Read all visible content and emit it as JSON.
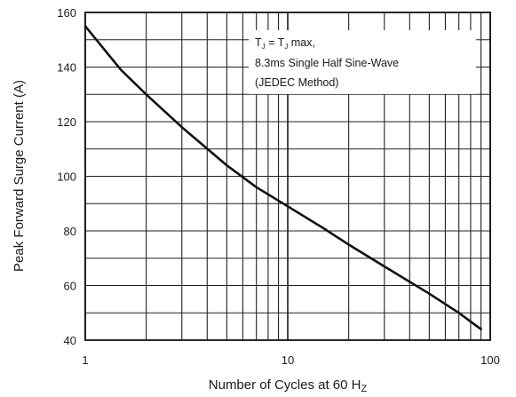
{
  "chart_data": {
    "type": "line",
    "xlabel": "Number of Cycles at 60 H",
    "xlabel_sub": "Z",
    "ylabel": "Peak Forward Surge Current (A)",
    "x_scale": "log",
    "xlim": [
      1,
      100
    ],
    "ylim": [
      40,
      160
    ],
    "x_ticks": [
      1,
      10,
      100
    ],
    "y_ticks": [
      40,
      60,
      80,
      100,
      120,
      140,
      160
    ],
    "grid": true,
    "annotation": {
      "line1_a": "T",
      "line1_a_sub": "J",
      "line1_eq": " = T",
      "line1_b_sub": "J",
      "line1_end": " max,",
      "line2": "8.3ms Single Half Sine-Wave",
      "line3": "(JEDEC Method)"
    },
    "series": [
      {
        "x": [
          1,
          1.5,
          2,
          3,
          5,
          7,
          10,
          15,
          20,
          30,
          50,
          70,
          90
        ],
        "y": [
          155,
          139,
          130,
          118,
          104,
          96,
          89,
          81,
          75,
          67,
          57,
          50,
          44
        ]
      }
    ]
  }
}
